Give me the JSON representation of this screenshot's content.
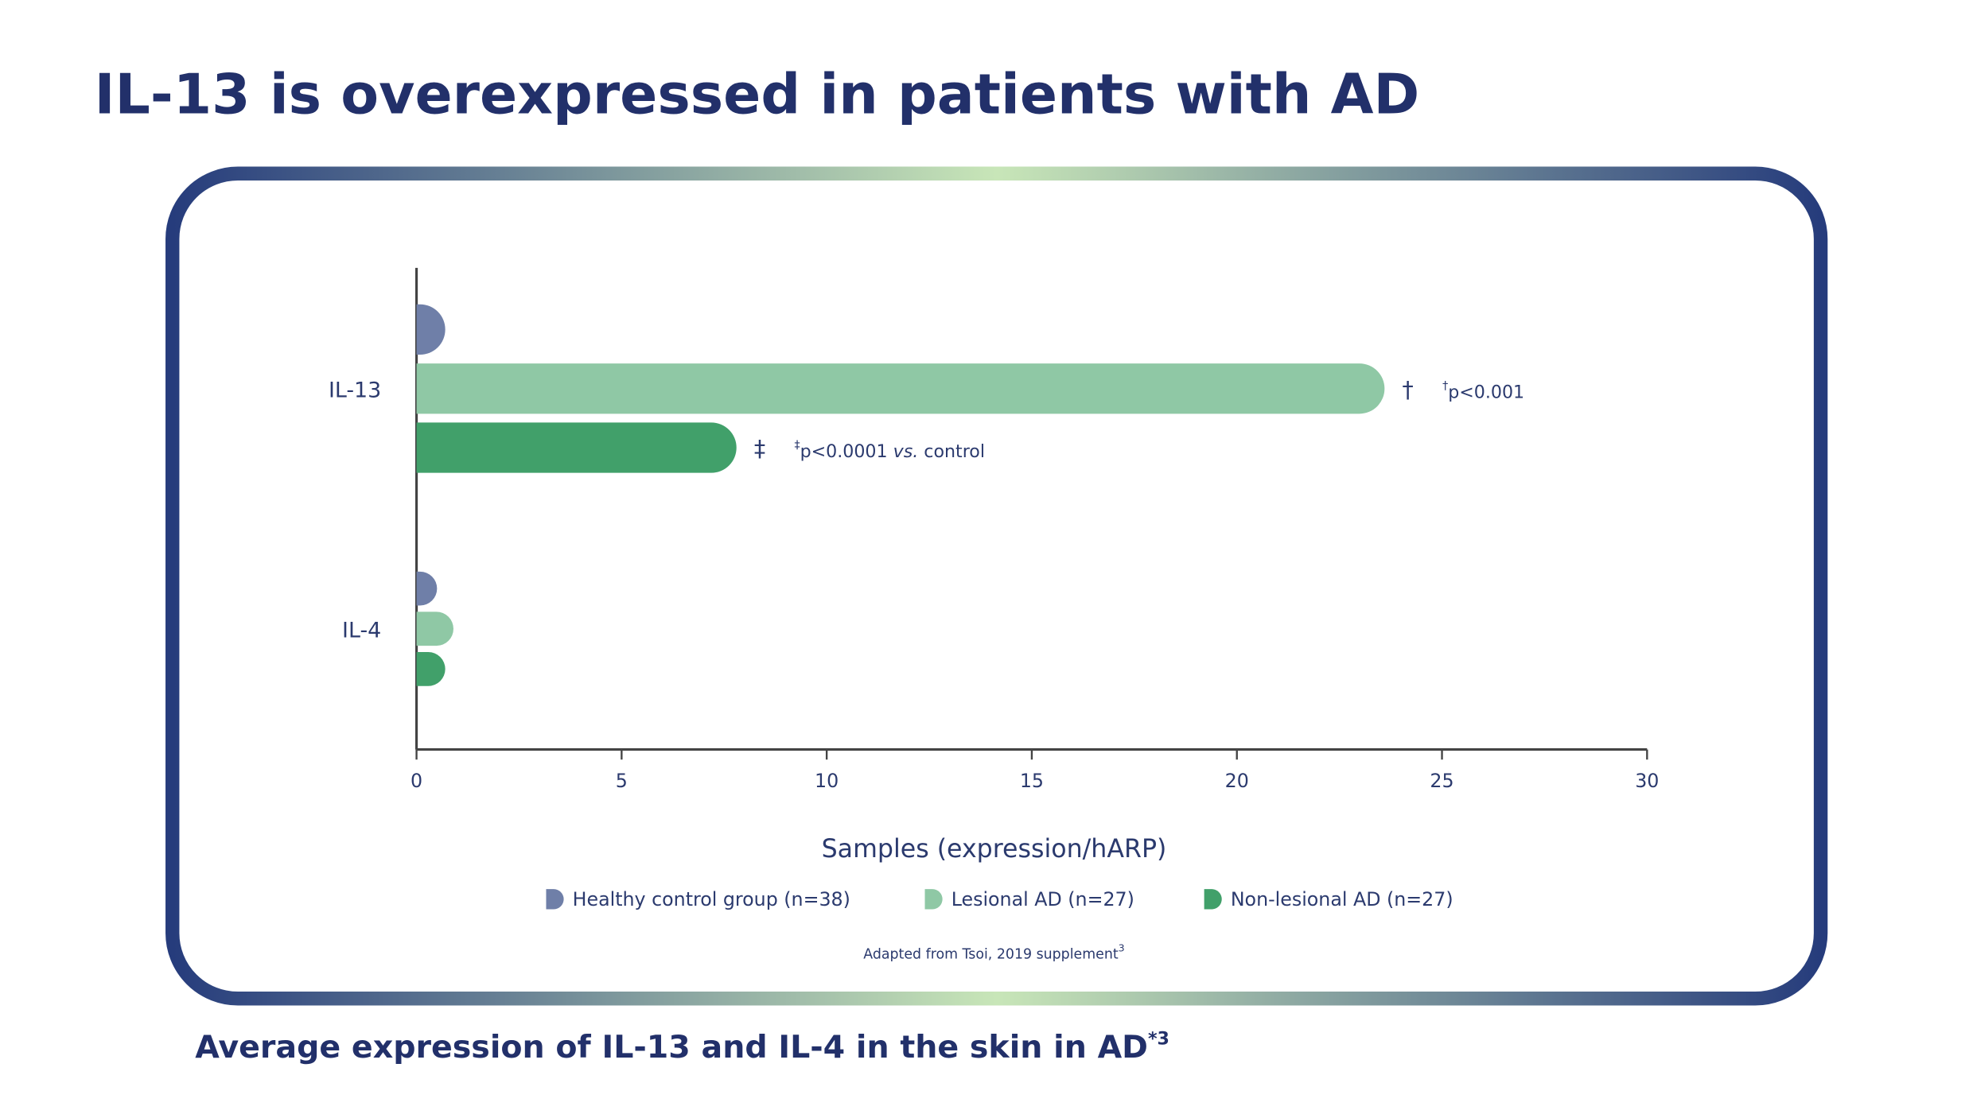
{
  "title": "IL-13 is overexpressed in patients with AD",
  "chart_data": {
    "type": "bar",
    "orientation": "horizontal",
    "title": "Average expression of IL-13 and IL-4 in the skin in AD",
    "title_sup": "*3",
    "x_label": "Samples (expression/hARP)",
    "categories": [
      "IL-13",
      "IL-4"
    ],
    "series": [
      {
        "name": "Healthy control group (n=38)",
        "color": "#6f7fa8",
        "values": [
          0.7,
          0.5
        ]
      },
      {
        "name": "Lesional AD (n=27)",
        "color": "#8fc8a5",
        "values": [
          23.6,
          0.9
        ]
      },
      {
        "name": "Non-lesional AD (n=27)",
        "color": "#41a06a",
        "values": [
          7.8,
          0.7
        ]
      }
    ],
    "xlim": [
      0,
      30
    ],
    "xticks": [
      0,
      5,
      10,
      15,
      20,
      25,
      30
    ],
    "annotations": [
      {
        "series": 1,
        "category": 0,
        "symbol": "†",
        "note": [
          {
            "text": "p<0.001"
          }
        ]
      },
      {
        "series": 2,
        "category": 0,
        "symbol": "‡",
        "note": [
          {
            "text": "p<0.0001 "
          },
          {
            "text": "vs.",
            "italic": true
          },
          {
            "text": " control"
          }
        ]
      }
    ],
    "source": "Adapted from Tsoi, 2019 supplement",
    "source_sup": "3"
  }
}
